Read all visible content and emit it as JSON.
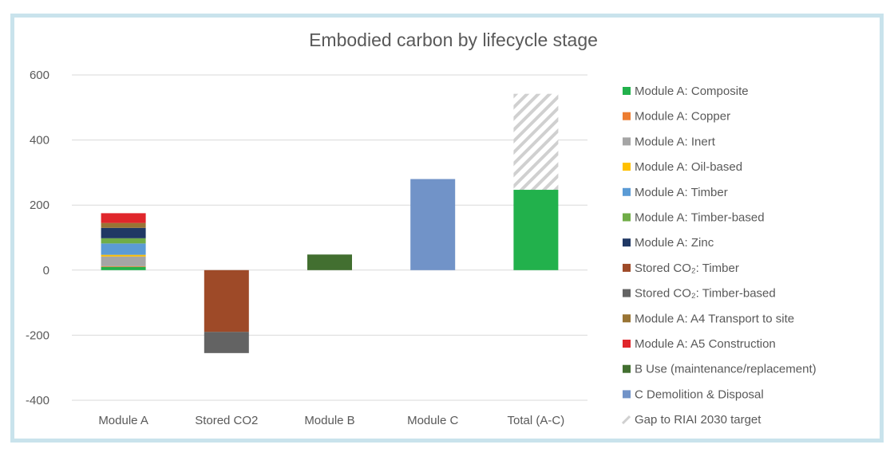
{
  "chart_data": {
    "type": "bar",
    "stacked": true,
    "title": "Embodied carbon by lifecycle stage",
    "xlabel": "",
    "ylabel": "",
    "ylim": [
      -400,
      600
    ],
    "yticks": [
      600,
      400,
      200,
      0,
      -200,
      -400
    ],
    "categories": [
      "Module A",
      "Stored CO2",
      "Module B",
      "Module C",
      "Total (A-C)"
    ],
    "series": [
      {
        "name": "Module A: Composite",
        "color": "#22b14c",
        "values": [
          10,
          0,
          0,
          0,
          247
        ]
      },
      {
        "name": "Module A: Copper",
        "color": "#ed7d31",
        "values": [
          2,
          0,
          0,
          0,
          0
        ]
      },
      {
        "name": "Module A: Inert",
        "color": "#a5a5a5",
        "values": [
          30,
          0,
          0,
          0,
          0
        ]
      },
      {
        "name": "Module A: Oil-based",
        "color": "#ffc000",
        "values": [
          5,
          0,
          0,
          0,
          0
        ]
      },
      {
        "name": "Module A: Timber",
        "color": "#5b9bd5",
        "values": [
          35,
          0,
          0,
          0,
          0
        ]
      },
      {
        "name": "Module A: Timber-based",
        "color": "#70ad47",
        "values": [
          16,
          0,
          0,
          0,
          0
        ]
      },
      {
        "name": "Module A: Zinc",
        "color": "#203864",
        "values": [
          32,
          0,
          0,
          0,
          0
        ]
      },
      {
        "name": "Stored CO₂: Timber",
        "color": "#9e4a28",
        "values": [
          0,
          -190,
          0,
          0,
          0
        ]
      },
      {
        "name": "Stored CO₂: Timber-based",
        "color": "#636363",
        "values": [
          0,
          -65,
          0,
          0,
          0
        ]
      },
      {
        "name": "Module A: A4 Transport to site",
        "color": "#997434",
        "values": [
          15,
          0,
          0,
          0,
          0
        ]
      },
      {
        "name": "Module A: A5 Construction",
        "color": "#e0262b",
        "values": [
          30,
          0,
          0,
          0,
          0
        ]
      },
      {
        "name": "B Use (maintenance/replacement)",
        "color": "#426f30",
        "values": [
          0,
          0,
          48,
          0,
          0
        ]
      },
      {
        "name": "C Demolition & Disposal",
        "color": "#7193c8",
        "values": [
          0,
          0,
          0,
          280,
          0
        ]
      },
      {
        "name": "Gap to RIAI 2030 target",
        "color": "#d0d0d0",
        "pattern": "hatch",
        "values": [
          0,
          0,
          0,
          0,
          295
        ]
      }
    ],
    "legend_position": "right",
    "grid": true
  }
}
